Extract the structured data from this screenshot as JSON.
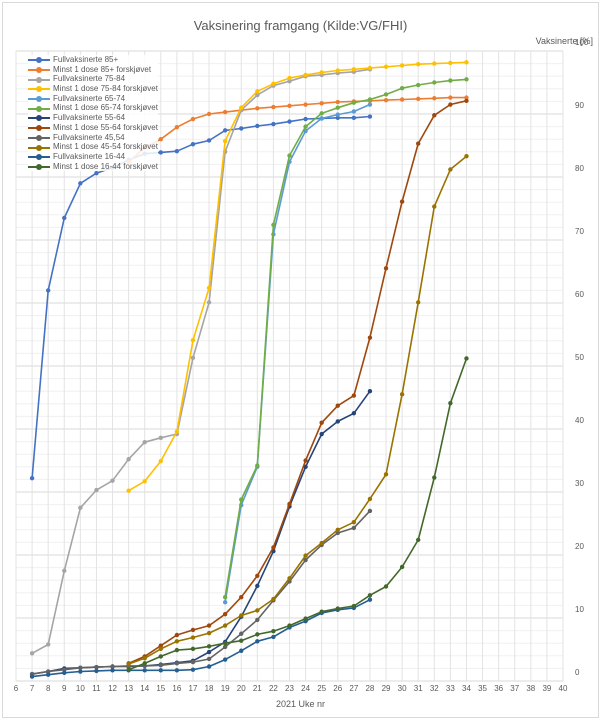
{
  "chart_data": {
    "type": "line",
    "title": "Vaksinering framgang (Kilde:VG/FHI)",
    "xlabel": "2021 Uke nr",
    "ylabel": "Vaksinerte [%]",
    "xlim": [
      6,
      40
    ],
    "ylim": [
      0,
      100
    ],
    "x_ticks": [
      6,
      7,
      8,
      9,
      10,
      11,
      12,
      13,
      14,
      15,
      16,
      17,
      18,
      19,
      20,
      21,
      22,
      23,
      24,
      25,
      26,
      27,
      28,
      29,
      30,
      31,
      32,
      33,
      34,
      35,
      36,
      37,
      38,
      39,
      40
    ],
    "y_ticks": [
      0,
      10,
      20,
      30,
      40,
      50,
      60,
      70,
      80,
      90,
      100
    ],
    "y_axis_position": "right",
    "grid": {
      "major": true,
      "minor_y": true,
      "vertical": true
    },
    "legend_position": "top-left inside",
    "series": [
      {
        "name": "Fullvaksinerte 85+",
        "color": "#4472C4",
        "x": [
          7,
          8,
          9,
          10,
          11,
          12,
          13,
          14,
          15,
          16,
          17,
          18,
          19,
          20,
          21,
          22,
          23,
          24,
          25,
          26,
          27,
          28
        ],
        "values": [
          32.2,
          62,
          73.5,
          79,
          80.6,
          81.5,
          82.7,
          83.7,
          83.9,
          84.1,
          85.2,
          85.8,
          87.4,
          87.7,
          88.1,
          88.4,
          88.8,
          89.2,
          89.3,
          89.4,
          89.4,
          89.6
        ]
      },
      {
        "name": "Minst 1 dose 85+ forskjøvet",
        "color": "#ED7D31",
        "x": [
          13,
          14,
          15,
          16,
          17,
          18,
          19,
          20,
          21,
          22,
          23,
          24,
          25,
          26,
          27,
          28,
          29,
          30,
          31,
          32,
          33,
          34
        ],
        "values": [
          82.4,
          84.6,
          86,
          87.9,
          89.2,
          90,
          90.3,
          90.6,
          90.9,
          91.1,
          91.3,
          91.5,
          91.7,
          91.9,
          92,
          92.1,
          92.2,
          92.3,
          92.4,
          92.5,
          92.6,
          92.6
        ]
      },
      {
        "name": "Fullvaksinerte 75-84",
        "color": "#A5A5A5",
        "x": [
          7,
          8,
          9,
          10,
          11,
          12,
          13,
          14,
          15,
          16,
          17,
          18,
          19,
          20,
          21,
          22,
          23,
          24,
          25,
          26,
          27,
          28
        ],
        "values": [
          4.4,
          5.8,
          17.5,
          27.5,
          30.3,
          31.8,
          35.2,
          37.9,
          38.6,
          39.2,
          51.3,
          60.1,
          84,
          90.6,
          93,
          94.5,
          95.2,
          96,
          96.2,
          96.5,
          96.7,
          97.1
        ]
      },
      {
        "name": "Minst 1 dose 75-84 forskjøvet",
        "color": "#FFC000",
        "x": [
          13,
          14,
          15,
          16,
          17,
          18,
          19,
          20,
          21,
          22,
          23,
          24,
          25,
          26,
          27,
          28,
          29,
          30,
          31,
          32,
          33,
          34
        ],
        "values": [
          30.2,
          31.7,
          34.9,
          39.6,
          54.1,
          62.4,
          85.7,
          91,
          93.6,
          94.8,
          95.7,
          96.2,
          96.6,
          96.9,
          97.1,
          97.3,
          97.5,
          97.7,
          97.9,
          98,
          98.1,
          98.2
        ]
      },
      {
        "name": "Fullvaksinerte 65-74",
        "color": "#5B9BD5",
        "x": [
          19,
          20,
          21,
          22,
          23,
          24,
          25,
          26,
          27,
          28
        ],
        "values": [
          12.5,
          27.9,
          34,
          70.9,
          82.4,
          87.3,
          89.3,
          89.9,
          90.4,
          91.5
        ]
      },
      {
        "name": "Minst 1 dose 65-74 forskjøvet",
        "color": "#70AD47",
        "x": [
          19,
          20,
          21,
          22,
          23,
          24,
          25,
          26,
          27,
          28,
          29,
          30,
          31,
          32,
          33,
          34
        ],
        "values": [
          13.3,
          28.8,
          34.2,
          72.4,
          83.4,
          88,
          90.1,
          91,
          91.8,
          92.3,
          93.1,
          94.1,
          94.6,
          95,
          95.3,
          95.5
        ]
      },
      {
        "name": "Fullvaksinerte 55-64",
        "color": "#264478",
        "x": [
          7,
          8,
          9,
          10,
          11,
          12,
          13,
          14,
          15,
          16,
          17,
          18,
          19,
          20,
          21,
          22,
          23,
          24,
          25,
          26,
          27,
          28
        ],
        "values": [
          1.1,
          1.5,
          2,
          2.1,
          2.2,
          2.3,
          2.3,
          2.4,
          2.6,
          2.9,
          3.2,
          4.6,
          6.2,
          10.2,
          15.1,
          20.6,
          27.7,
          34,
          39.2,
          41.2,
          42.5,
          46
        ]
      },
      {
        "name": "Minst 1 dose 55-64 forskjøvet",
        "color": "#9E480E",
        "x": [
          13,
          14,
          15,
          16,
          17,
          18,
          19,
          20,
          21,
          22,
          23,
          24,
          25,
          26,
          27,
          28,
          29,
          30,
          31,
          32,
          33,
          34
        ],
        "values": [
          2.8,
          3.9,
          5.6,
          7.3,
          8.1,
          8.8,
          10.6,
          13.3,
          16.7,
          21.2,
          28.1,
          35,
          41,
          43.7,
          45.3,
          54.5,
          65.5,
          76.1,
          85.3,
          89.8,
          91.5,
          92.1
        ]
      },
      {
        "name": "Fullvaksinerte 45,54",
        "color": "#636363",
        "x": [
          7,
          8,
          9,
          10,
          11,
          12,
          13,
          14,
          15,
          16,
          17,
          18,
          19,
          20,
          21,
          22,
          23,
          24,
          25,
          26,
          27,
          28
        ],
        "values": [
          1.1,
          1.5,
          1.8,
          2.1,
          2.2,
          2.3,
          2.4,
          2.4,
          2.5,
          2.8,
          3,
          3.5,
          5.4,
          7.5,
          9.7,
          12.8,
          15.8,
          19.2,
          21.6,
          23.5,
          24.3,
          27
        ]
      },
      {
        "name": "Minst 1 dose 45-54 forskjøvet",
        "color": "#997300",
        "x": [
          13,
          14,
          15,
          16,
          17,
          18,
          19,
          20,
          21,
          22,
          23,
          24,
          25,
          26,
          27,
          28,
          29,
          30,
          31,
          32,
          33,
          34
        ],
        "values": [
          2.7,
          3.6,
          5.1,
          6.3,
          6.9,
          7.6,
          8.8,
          10.4,
          11.2,
          13,
          16.3,
          19.9,
          21.9,
          24,
          25.2,
          28.9,
          32.8,
          45.5,
          60.1,
          75.3,
          81.2,
          83.3
        ]
      },
      {
        "name": "Fullvaksinerte 16-44",
        "color": "#255E91",
        "x": [
          7,
          8,
          9,
          10,
          11,
          12,
          13,
          14,
          15,
          16,
          17,
          18,
          19,
          20,
          21,
          22,
          23,
          24,
          25,
          26,
          27,
          28
        ],
        "values": [
          0.7,
          1,
          1.3,
          1.5,
          1.6,
          1.7,
          1.7,
          1.7,
          1.7,
          1.7,
          1.8,
          2.3,
          3.4,
          4.8,
          6.3,
          7,
          8.5,
          9.5,
          10.8,
          11.3,
          11.6,
          12.9
        ]
      },
      {
        "name": "Minst 1 dose 16-44 forskjøvet",
        "color": "#43682B",
        "x": [
          13,
          14,
          15,
          16,
          17,
          18,
          19,
          20,
          21,
          22,
          23,
          24,
          25,
          26,
          27,
          28,
          29,
          30,
          31,
          32,
          33,
          34
        ],
        "values": [
          1.8,
          2.8,
          3.9,
          4.9,
          5.1,
          5.5,
          6,
          6.4,
          7.4,
          7.9,
          8.8,
          9.9,
          11,
          11.5,
          11.9,
          13.6,
          15,
          18.1,
          22.4,
          32.3,
          44.1,
          51.2
        ]
      }
    ]
  }
}
